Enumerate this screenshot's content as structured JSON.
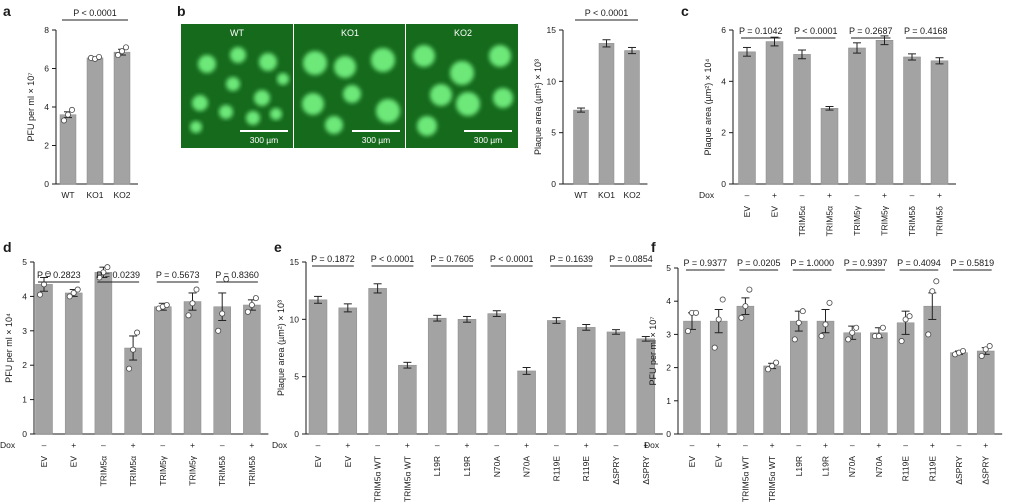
{
  "colors": {
    "bar": "#a3a3a3",
    "bar_edge": "#8a8a8a",
    "point_fill": "#ffffff",
    "point_edge": "#4a4a4a",
    "micro_bg": "#156a1c",
    "micro_fg": "#7dff8a",
    "axis": "#1a1a1a"
  },
  "panels": {
    "a": {
      "letter": "a"
    },
    "b": {
      "letter": "b",
      "image_labels": [
        "WT",
        "KO1",
        "KO2"
      ],
      "scale_label": "300 µm"
    },
    "c": {
      "letter": "c"
    },
    "d": {
      "letter": "d"
    },
    "e": {
      "letter": "e"
    },
    "f": {
      "letter": "f"
    }
  },
  "chart_data": [
    {
      "id": "a",
      "type": "bar",
      "categories": [
        "WT",
        "KO1",
        "KO2"
      ],
      "values": [
        3.6,
        6.55,
        6.85
      ],
      "errors": [
        0.15,
        0.06,
        0.15
      ],
      "points": [
        [
          3.3,
          3.6,
          3.85
        ],
        [
          6.55,
          6.5,
          6.6
        ],
        [
          6.7,
          6.9,
          7.1
        ]
      ],
      "ylabel": "PFU per ml × 10⁷",
      "ylim": [
        0,
        8
      ],
      "yticks": [
        0,
        2,
        4,
        6,
        8
      ],
      "comparisons": [
        {
          "from": 0,
          "to": 2,
          "label": "P < 0.0001"
        }
      ]
    },
    {
      "id": "b",
      "type": "bar",
      "categories": [
        "WT",
        "KO1",
        "KO2"
      ],
      "values": [
        7.2,
        13.7,
        13.0
      ],
      "errors": [
        0.2,
        0.35,
        0.3
      ],
      "points": null,
      "ylabel": "Plaque area (µm²) × 10³",
      "ylim": [
        0,
        15
      ],
      "yticks": [
        0,
        5,
        10,
        15
      ],
      "comparisons": [
        {
          "from": 0,
          "to": 2,
          "label": "P < 0.0001"
        }
      ]
    },
    {
      "id": "c",
      "type": "bar",
      "categories": [
        "EV",
        "EV",
        "TRIM5α",
        "TRIM5α",
        "TRIM5γ",
        "TRIM5γ",
        "TRIM5δ",
        "TRIM5δ"
      ],
      "dox": [
        "–",
        "+",
        "–",
        "+",
        "–",
        "+",
        "–",
        "+"
      ],
      "dox_label": "Dox",
      "values": [
        5.15,
        5.55,
        5.05,
        2.95,
        5.3,
        5.6,
        4.95,
        4.8
      ],
      "errors": [
        0.17,
        0.17,
        0.17,
        0.07,
        0.2,
        0.17,
        0.12,
        0.12
      ],
      "points": null,
      "ylabel": "Plaque area (µm²) × 10⁴",
      "ylim": [
        0,
        6
      ],
      "yticks": [
        0,
        2,
        4,
        6
      ],
      "comparisons": [
        {
          "from": 0,
          "to": 1,
          "label": "P = 0.1042"
        },
        {
          "from": 2,
          "to": 3,
          "label": "P < 0.0001"
        },
        {
          "from": 4,
          "to": 5,
          "label": "P = 0.2687"
        },
        {
          "from": 6,
          "to": 7,
          "label": "P = 0.4168"
        }
      ]
    },
    {
      "id": "d",
      "type": "bar",
      "categories": [
        "EV",
        "EV",
        "TRIM5α",
        "TRIM5α",
        "TRIM5γ",
        "TRIM5γ",
        "TRIM5δ",
        "TRIM5δ"
      ],
      "dox": [
        "–",
        "+",
        "–",
        "+",
        "–",
        "+",
        "–",
        "+"
      ],
      "dox_label": "Dox",
      "values": [
        4.35,
        4.1,
        4.7,
        2.5,
        3.7,
        3.85,
        3.7,
        3.75
      ],
      "errors": [
        0.2,
        0.1,
        0.15,
        0.35,
        0.1,
        0.25,
        0.4,
        0.15
      ],
      "points": [
        [
          4.05,
          4.35,
          4.65
        ],
        [
          4.0,
          4.1,
          4.2
        ],
        [
          4.55,
          4.7,
          4.85
        ],
        [
          1.9,
          2.45,
          2.95
        ],
        [
          3.65,
          3.7,
          3.75
        ],
        [
          3.45,
          3.8,
          4.2
        ],
        [
          3.0,
          3.5,
          4.5
        ],
        [
          3.55,
          3.75,
          3.95
        ]
      ],
      "ylabel": "PFU per ml × 10⁴",
      "ylim": [
        0,
        5
      ],
      "yticks": [
        0,
        1,
        2,
        3,
        4,
        5
      ],
      "comparisons": [
        {
          "from": 0,
          "to": 1,
          "label": "P = 0.2823"
        },
        {
          "from": 2,
          "to": 3,
          "label": "P = 0.0239"
        },
        {
          "from": 4,
          "to": 5,
          "label": "P = 0.5673"
        },
        {
          "from": 6,
          "to": 7,
          "label": "P = 0.8360"
        }
      ]
    },
    {
      "id": "e",
      "type": "bar",
      "categories": [
        "EV",
        "EV",
        "TRIM5α WT",
        "TRIM5α WT",
        "L19R",
        "L19R",
        "N70A",
        "N70A",
        "R119E",
        "R119E",
        "ΔSPRY",
        "ΔSPRY"
      ],
      "dox": [
        "–",
        "+",
        "–",
        "+",
        "–",
        "+",
        "–",
        "+",
        "–",
        "+",
        "–",
        "+"
      ],
      "dox_label": "Dox",
      "values": [
        11.7,
        11.0,
        12.7,
        6.0,
        10.1,
        10.0,
        10.5,
        5.5,
        9.9,
        9.3,
        8.9,
        8.3
      ],
      "errors": [
        0.3,
        0.35,
        0.4,
        0.25,
        0.25,
        0.25,
        0.25,
        0.3,
        0.25,
        0.25,
        0.2,
        0.2
      ],
      "points": null,
      "ylabel": "Plaque area (µm²) × 10³",
      "ylim": [
        0,
        15
      ],
      "yticks": [
        0,
        5,
        10,
        15
      ],
      "comparisons": [
        {
          "from": 0,
          "to": 1,
          "label": "P = 0.1872"
        },
        {
          "from": 2,
          "to": 3,
          "label": "P < 0.0001"
        },
        {
          "from": 4,
          "to": 5,
          "label": "P = 0.7605"
        },
        {
          "from": 6,
          "to": 7,
          "label": "P < 0.0001"
        },
        {
          "from": 8,
          "to": 9,
          "label": "P = 0.1639"
        },
        {
          "from": 10,
          "to": 11,
          "label": "P = 0.0854"
        }
      ]
    },
    {
      "id": "f",
      "type": "bar",
      "categories": [
        "EV",
        "EV",
        "TRIM5α WT",
        "TRIM5α WT",
        "L19R",
        "L19R",
        "N70A",
        "N70A",
        "R119E",
        "R119E",
        "ΔSPRY",
        "ΔSPRY"
      ],
      "dox": [
        "–",
        "+",
        "–",
        "+",
        "–",
        "+",
        "–",
        "+",
        "–",
        "+",
        "–",
        "+"
      ],
      "dox_label": "Dox",
      "values": [
        3.4,
        3.4,
        3.85,
        2.05,
        3.4,
        3.4,
        3.05,
        3.05,
        3.35,
        3.85,
        2.45,
        2.5
      ],
      "errors": [
        0.25,
        0.35,
        0.25,
        0.08,
        0.3,
        0.35,
        0.2,
        0.15,
        0.35,
        0.4,
        0.05,
        0.1
      ],
      "points": [
        [
          3.1,
          3.65,
          3.65
        ],
        [
          2.6,
          3.45,
          4.05
        ],
        [
          3.5,
          3.85,
          4.35
        ],
        [
          1.95,
          2.05,
          2.15
        ],
        [
          2.85,
          3.35,
          3.7
        ],
        [
          2.95,
          3.3,
          3.95
        ],
        [
          2.85,
          3.05,
          3.2
        ],
        [
          2.95,
          2.95,
          3.2
        ],
        [
          2.8,
          3.45,
          3.55
        ],
        [
          3.0,
          4.3,
          4.6
        ],
        [
          2.4,
          2.45,
          2.5
        ],
        [
          2.35,
          2.55,
          2.65
        ]
      ],
      "ylabel": "PFU per ml × 10⁷",
      "ylim": [
        0,
        5
      ],
      "yticks": [
        0,
        1,
        2,
        3,
        4,
        5
      ],
      "comparisons": [
        {
          "from": 0,
          "to": 1,
          "label": "P = 0.9377"
        },
        {
          "from": 2,
          "to": 3,
          "label": "P = 0.0205"
        },
        {
          "from": 4,
          "to": 5,
          "label": "P = 1.0000"
        },
        {
          "from": 6,
          "to": 7,
          "label": "P = 0.9397"
        },
        {
          "from": 8,
          "to": 9,
          "label": "P = 0.4094"
        },
        {
          "from": 10,
          "to": 11,
          "label": "P = 0.5819"
        }
      ]
    }
  ]
}
